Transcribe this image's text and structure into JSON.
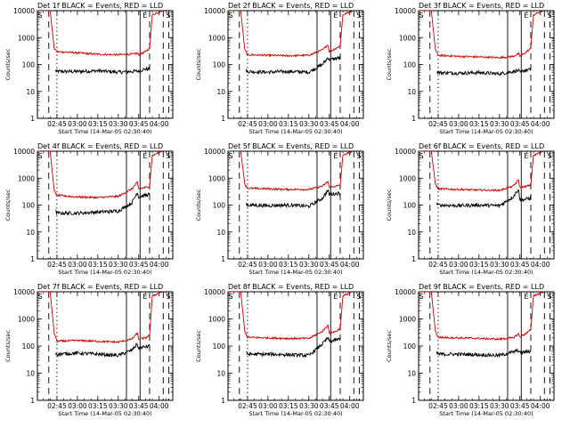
{
  "figure": {
    "ylabel": "Counts/sec",
    "xlabel": "Start Time (14-Mar-05 02:30:40)",
    "x_tick_labels": [
      "02:45",
      "03:00",
      "03:15",
      "03:30",
      "03:45",
      "04:00"
    ],
    "y_tick_labels": [
      "1",
      "10",
      "100",
      "1000",
      "10000"
    ],
    "marker_letters": [
      "S",
      "E"
    ],
    "legend_colors": {
      "events": "#000000",
      "lld": "#d00000"
    }
  },
  "chart_data": [
    {
      "type": "line",
      "title": "Det 1f BLACK = Events, RED = LLD",
      "xlabel": "Start Time (14-Mar-05 02:30:40)",
      "ylabel": "Counts/sec",
      "scale": "log",
      "ylim": [
        1,
        10000
      ],
      "series": [
        {
          "color": "#000000",
          "x": [
            "02:44",
            "02:45",
            "03:00",
            "03:15",
            "03:30",
            "03:40",
            "03:44",
            "03:45",
            "03:48",
            "03:53"
          ],
          "values": [
            60,
            55,
            55,
            58,
            52,
            55,
            57,
            55,
            65,
            70
          ]
        },
        {
          "color": "#d00000",
          "x": [
            "02:30",
            "02:40",
            "02:43",
            "02:45",
            "03:00",
            "03:15",
            "03:30",
            "03:40",
            "03:44",
            "03:45",
            "03:50",
            "03:53",
            "03:55",
            "04:02"
          ],
          "values": [
            10000,
            10000,
            400,
            300,
            270,
            240,
            230,
            240,
            260,
            230,
            300,
            400,
            7000,
            10000
          ]
        }
      ]
    },
    {
      "type": "line",
      "title": "Det 2f BLACK = Events, RED = LLD",
      "xlabel": "Start Time (14-Mar-05 02:30:40)",
      "ylabel": "Counts/sec",
      "scale": "log",
      "ylim": [
        1,
        10000
      ],
      "series": [
        {
          "color": "#000000",
          "x": [
            "02:44",
            "02:45",
            "03:00",
            "03:15",
            "03:30",
            "03:40",
            "03:44",
            "03:45",
            "03:48",
            "03:53"
          ],
          "values": [
            60,
            55,
            52,
            55,
            52,
            100,
            180,
            150,
            160,
            180
          ]
        },
        {
          "color": "#d00000",
          "x": [
            "02:30",
            "02:40",
            "02:43",
            "02:45",
            "03:00",
            "03:15",
            "03:30",
            "03:40",
            "03:44",
            "03:45",
            "03:50",
            "03:53",
            "03:55",
            "04:02"
          ],
          "values": [
            10000,
            10000,
            350,
            230,
            220,
            210,
            220,
            350,
            550,
            300,
            400,
            500,
            7000,
            10000
          ]
        }
      ]
    },
    {
      "type": "line",
      "title": "Det 3f BLACK = Events, RED = LLD",
      "xlabel": "Start Time (14-Mar-05 02:30:40)",
      "ylabel": "Counts/sec",
      "scale": "log",
      "ylim": [
        1,
        10000
      ],
      "series": [
        {
          "color": "#000000",
          "x": [
            "02:44",
            "02:45",
            "03:00",
            "03:15",
            "03:30",
            "03:40",
            "03:44",
            "03:45",
            "03:48",
            "03:53"
          ],
          "values": [
            55,
            50,
            48,
            50,
            45,
            55,
            60,
            50,
            60,
            65
          ]
        },
        {
          "color": "#d00000",
          "x": [
            "02:30",
            "02:40",
            "02:43",
            "02:45",
            "03:00",
            "03:15",
            "03:30",
            "03:40",
            "03:44",
            "03:45",
            "03:50",
            "03:53",
            "03:55",
            "04:02"
          ],
          "values": [
            10000,
            10000,
            350,
            220,
            200,
            190,
            180,
            200,
            250,
            200,
            300,
            400,
            7000,
            10000
          ]
        }
      ]
    },
    {
      "type": "line",
      "title": "Det 4f BLACK = Events, RED = LLD",
      "xlabel": "Start Time (14-Mar-05 02:30:40)",
      "ylabel": "Counts/sec",
      "scale": "log",
      "ylim": [
        1,
        10000
      ],
      "series": [
        {
          "color": "#000000",
          "x": [
            "02:44",
            "02:45",
            "03:00",
            "03:15",
            "03:30",
            "03:40",
            "03:44",
            "03:45",
            "03:48",
            "03:53"
          ],
          "values": [
            60,
            50,
            50,
            55,
            60,
            120,
            300,
            200,
            220,
            250
          ]
        },
        {
          "color": "#d00000",
          "x": [
            "02:30",
            "02:40",
            "02:43",
            "02:45",
            "03:00",
            "03:15",
            "03:30",
            "03:40",
            "03:44",
            "03:45",
            "03:50",
            "03:53",
            "03:55",
            "04:02"
          ],
          "values": [
            10000,
            10000,
            350,
            230,
            200,
            190,
            210,
            400,
            700,
            400,
            450,
            500,
            7000,
            10000
          ]
        }
      ]
    },
    {
      "type": "line",
      "title": "Det 5f BLACK = Events, RED = LLD",
      "xlabel": "Start Time (14-Mar-05 02:30:40)",
      "ylabel": "Counts/sec",
      "scale": "log",
      "ylim": [
        1,
        10000
      ],
      "series": [
        {
          "color": "#000000",
          "x": [
            "02:44",
            "02:45",
            "03:00",
            "03:15",
            "03:30",
            "03:40",
            "03:44",
            "03:45",
            "03:48",
            "03:53"
          ],
          "values": [
            110,
            100,
            95,
            100,
            90,
            180,
            350,
            250,
            260,
            280
          ]
        },
        {
          "color": "#d00000",
          "x": [
            "02:30",
            "02:40",
            "02:43",
            "02:45",
            "03:00",
            "03:15",
            "03:30",
            "03:40",
            "03:44",
            "03:45",
            "03:50",
            "03:53",
            "03:55",
            "04:02"
          ],
          "values": [
            10000,
            10000,
            600,
            420,
            400,
            380,
            380,
            500,
            750,
            450,
            500,
            550,
            7000,
            10000
          ]
        }
      ]
    },
    {
      "type": "line",
      "title": "Det 6f BLACK = Events, RED = LLD",
      "xlabel": "Start Time (14-Mar-05 02:30:40)",
      "ylabel": "Counts/sec",
      "scale": "log",
      "ylim": [
        1,
        10000
      ],
      "series": [
        {
          "color": "#000000",
          "x": [
            "02:44",
            "02:45",
            "03:00",
            "03:15",
            "03:30",
            "03:40",
            "03:44",
            "03:45",
            "03:48",
            "03:53"
          ],
          "values": [
            110,
            100,
            95,
            100,
            95,
            200,
            400,
            150,
            160,
            180
          ]
        },
        {
          "color": "#d00000",
          "x": [
            "02:30",
            "02:40",
            "02:43",
            "02:45",
            "03:00",
            "03:15",
            "03:30",
            "03:40",
            "03:44",
            "03:45",
            "03:50",
            "03:53",
            "03:55",
            "04:02"
          ],
          "values": [
            10000,
            10000,
            600,
            400,
            380,
            360,
            350,
            500,
            850,
            450,
            500,
            550,
            7000,
            10000
          ]
        }
      ]
    },
    {
      "type": "line",
      "title": "Det 7f BLACK = Events, RED = LLD",
      "xlabel": "Start Time (14-Mar-05 02:30:40)",
      "ylabel": "Counts/sec",
      "scale": "log",
      "ylim": [
        1,
        10000
      ],
      "series": [
        {
          "color": "#000000",
          "x": [
            "02:44",
            "02:45",
            "03:00",
            "03:15",
            "03:30",
            "03:40",
            "03:44",
            "03:45",
            "03:48",
            "03:53"
          ],
          "values": [
            55,
            50,
            55,
            50,
            45,
            70,
            120,
            80,
            90,
            100
          ]
        },
        {
          "color": "#d00000",
          "x": [
            "02:30",
            "02:40",
            "02:43",
            "02:45",
            "03:00",
            "03:15",
            "03:30",
            "03:40",
            "03:44",
            "03:45",
            "03:50",
            "03:53",
            "03:55",
            "04:02"
          ],
          "values": [
            10000,
            10000,
            300,
            150,
            160,
            150,
            140,
            180,
            300,
            180,
            200,
            250,
            7000,
            10000
          ]
        }
      ]
    },
    {
      "type": "line",
      "title": "Det 8f BLACK = Events, RED = LLD",
      "xlabel": "Start Time (14-Mar-05 02:30:40)",
      "ylabel": "Counts/sec",
      "scale": "log",
      "ylim": [
        1,
        10000
      ],
      "series": [
        {
          "color": "#000000",
          "x": [
            "02:44",
            "02:45",
            "03:00",
            "03:15",
            "03:30",
            "03:40",
            "03:44",
            "03:45",
            "03:48",
            "03:53"
          ],
          "values": [
            55,
            50,
            50,
            48,
            45,
            120,
            200,
            150,
            160,
            180
          ]
        },
        {
          "color": "#d00000",
          "x": [
            "02:30",
            "02:40",
            "02:43",
            "02:45",
            "03:00",
            "03:15",
            "03:30",
            "03:40",
            "03:44",
            "03:45",
            "03:50",
            "03:53",
            "03:55",
            "04:02"
          ],
          "values": [
            10000,
            10000,
            350,
            210,
            200,
            190,
            190,
            350,
            600,
            300,
            350,
            450,
            7000,
            10000
          ]
        }
      ]
    },
    {
      "type": "line",
      "title": "Det 9f BLACK = Events, RED = LLD",
      "xlabel": "Start Time (14-Mar-05 02:30:40)",
      "ylabel": "Counts/sec",
      "scale": "log",
      "ylim": [
        1,
        10000
      ],
      "series": [
        {
          "color": "#000000",
          "x": [
            "02:44",
            "02:45",
            "03:00",
            "03:15",
            "03:30",
            "03:40",
            "03:44",
            "03:45",
            "03:48",
            "03:53"
          ],
          "values": [
            55,
            50,
            50,
            48,
            45,
            60,
            70,
            55,
            60,
            65
          ]
        },
        {
          "color": "#d00000",
          "x": [
            "02:30",
            "02:40",
            "02:43",
            "02:45",
            "03:00",
            "03:15",
            "03:30",
            "03:40",
            "03:44",
            "03:45",
            "03:50",
            "03:53",
            "03:55",
            "04:02"
          ],
          "values": [
            10000,
            10000,
            350,
            210,
            200,
            190,
            180,
            200,
            280,
            220,
            300,
            400,
            7000,
            10000
          ]
        }
      ]
    }
  ]
}
